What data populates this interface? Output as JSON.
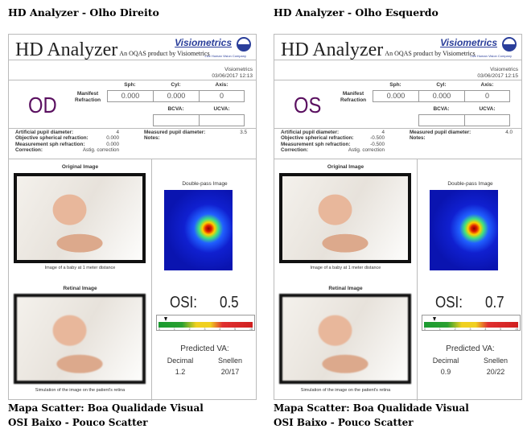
{
  "panels": [
    {
      "heading": "HD Analyzer - Olho Direito",
      "app_title": "HD Analyzer",
      "app_subtitle": "An OQAS product by Visiometrics",
      "logo": "Visiometrics",
      "logo_tagline": "Live Human Vision Company",
      "org": "Visiometrics",
      "datetime": "03/06/2017 12:13",
      "eye": "OD",
      "manifest_label": "Manifest Refraction",
      "sph_label": "Sph:",
      "cyl_label": "Cyl:",
      "axis_label": "Axis:",
      "sph": "0.000",
      "cyl": "0.000",
      "axis": "0",
      "bcva_label": "BCVA:",
      "ucva_label": "UCVA:",
      "bcva": "",
      "ucva": "",
      "artificial_pupil_label": "Artificial pupil diameter:",
      "artificial_pupil": "4",
      "obj_sph_label": "Objective spherical refraction:",
      "obj_sph": "0.000",
      "meas_sph_label": "Measurement sph refraction:",
      "meas_sph": "0.000",
      "correction_label": "Correction:",
      "correction": "Astig. correction",
      "measured_pupil_label": "Measured pupil diameter:",
      "measured_pupil": "3.5",
      "notes_label": "Notes:",
      "original_label": "Original Image",
      "original_caption": "Image of a baby at 1 meter distance",
      "retinal_label": "Retinal Image",
      "retinal_caption": "Simulation of the image on the patient's retina",
      "double_pass_label": "Double-pass Image",
      "osi_label": "OSI:",
      "osi": "0.5",
      "scale_ticks": [
        "0",
        "1",
        "2",
        "3",
        "4",
        "5",
        ">8"
      ],
      "predicted_label": "Predicted VA:",
      "decimal_label": "Decimal",
      "snellen_label": "Snellen",
      "decimal": "1.2",
      "snellen": "20/17",
      "caption1": "Mapa Scatter: Boa Qualidade Visual",
      "caption2": "OSI Baixo - Pouco Scatter"
    },
    {
      "heading": "HD Analyzer - Olho Esquerdo",
      "app_title": "HD Analyzer",
      "app_subtitle": "An OQAS product by Visiometrics",
      "logo": "Visiometrics",
      "logo_tagline": "Live Human Vision Company",
      "org": "Visiometrics",
      "datetime": "03/06/2017 12:15",
      "eye": "OS",
      "manifest_label": "Manifest Refraction",
      "sph_label": "Sph:",
      "cyl_label": "Cyl:",
      "axis_label": "Axis:",
      "sph": "0.000",
      "cyl": "0.000",
      "axis": "0",
      "bcva_label": "BCVA:",
      "ucva_label": "UCVA:",
      "bcva": "",
      "ucva": "",
      "artificial_pupil_label": "Artificial pupil diameter:",
      "artificial_pupil": "4",
      "obj_sph_label": "Objective spherical refraction:",
      "obj_sph": "-0.500",
      "meas_sph_label": "Measurement sph refraction:",
      "meas_sph": "-0.500",
      "correction_label": "Correction:",
      "correction": "Astig. correction",
      "measured_pupil_label": "Measured pupil diameter:",
      "measured_pupil": "4.0",
      "notes_label": "Notes:",
      "original_label": "Original Image",
      "original_caption": "Image of a baby at 1 meter distance",
      "retinal_label": "Retinal Image",
      "retinal_caption": "Simulation of the image on the patient's retina",
      "double_pass_label": "Double-pass Image",
      "osi_label": "OSI:",
      "osi": "0.7",
      "scale_ticks": [
        "0",
        "1",
        "2",
        "3",
        "4",
        "5",
        ">8"
      ],
      "predicted_label": "Predicted VA:",
      "decimal_label": "Decimal",
      "snellen_label": "Snellen",
      "decimal": "0.9",
      "snellen": "20/22",
      "caption1": "Mapa Scatter: Boa Qualidade Visual",
      "caption2": "OSI Baixo - Pouco Scatter"
    }
  ]
}
